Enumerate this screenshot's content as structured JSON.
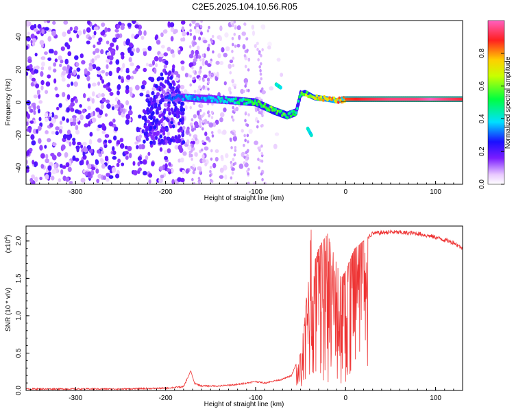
{
  "title": "C2E5.2025.104.10.56.R05",
  "colors": {
    "snr_line": "#ee3333",
    "frame": "#000000",
    "background": "#ffffff"
  },
  "chart_data": [
    {
      "type": "heatmap",
      "title": "C2E5.2025.104.10.56.R05",
      "xlabel": "Height of straight line (km)",
      "ylabel": "Frequency (Hz)",
      "xlim": [
        -355,
        130
      ],
      "ylim": [
        -50,
        50
      ],
      "xticks": [
        -300,
        -200,
        -100,
        0,
        100
      ],
      "yticks": [
        -40,
        -20,
        0,
        20,
        40
      ],
      "colorbar": {
        "label": "Normalized spectral amplitude",
        "range": [
          0.0,
          1.0
        ],
        "ticks": [
          "0.0",
          "0.2",
          "0.4",
          "0.6",
          "0.8"
        ],
        "colormap": [
          "#ffffff",
          "#e8c8ff",
          "#7a1cff",
          "#1a10ff",
          "#00e0ff",
          "#00ff40",
          "#c8ff00",
          "#ffcf00",
          "#ff2020",
          "#ff60c0"
        ]
      },
      "features": {
        "noise_region": {
          "x": [
            -355,
            -180
          ],
          "f": [
            -50,
            50
          ],
          "amplitude": 0.15
        },
        "signal_track": {
          "x": [
            -200,
            -180,
            -150,
            -120,
            -100,
            -80,
            -65,
            -55,
            -50,
            -45,
            -35,
            -20,
            -10,
            0,
            20,
            50,
            80,
            95,
            110,
            130
          ],
          "f": [
            3,
            3,
            2,
            1,
            0,
            -5,
            -8,
            -6,
            5,
            6,
            3,
            2,
            1,
            2,
            2,
            2,
            2,
            2,
            2,
            2
          ],
          "amplitude": [
            0.25,
            0.35,
            0.35,
            0.45,
            0.5,
            0.55,
            0.55,
            0.45,
            0.55,
            0.6,
            0.65,
            0.75,
            0.8,
            0.85,
            0.9,
            0.95,
            0.95,
            1.0,
            0.95,
            0.9
          ]
        },
        "side_tracks": [
          {
            "x": [
              -77,
              -72
            ],
            "f": [
              11,
              9
            ]
          },
          {
            "x": [
              -42,
              -38
            ],
            "f": [
              -16,
              -20
            ]
          }
        ]
      }
    },
    {
      "type": "line",
      "xlabel": "Height of straight line (km)",
      "ylabel": "SNR (10 * v/v)",
      "yscale_label": "(x10",
      "yscale_exp": "4",
      "xlim": [
        -355,
        130
      ],
      "ylim": [
        0,
        2.2
      ],
      "xticks": [
        -300,
        -200,
        -100,
        0,
        100
      ],
      "yticks": [
        "0.0",
        "0.5",
        "1.0",
        "1.5",
        "2.0"
      ],
      "envelope": {
        "x": [
          -355,
          -250,
          -200,
          -180,
          -172,
          -168,
          -160,
          -140,
          -120,
          -100,
          -90,
          -70,
          -60,
          -50,
          -45,
          -40,
          -38,
          -35,
          -30,
          -20,
          -15,
          -10,
          -5,
          0,
          5,
          10,
          20,
          30,
          50,
          80,
          100,
          120,
          130
        ],
        "y": [
          0.02,
          0.02,
          0.03,
          0.05,
          0.26,
          0.1,
          0.06,
          0.06,
          0.08,
          0.12,
          0.1,
          0.15,
          0.2,
          0.5,
          1.0,
          1.8,
          2.2,
          1.7,
          1.9,
          2.1,
          1.9,
          1.7,
          1.5,
          1.6,
          1.75,
          1.9,
          2.0,
          2.1,
          2.12,
          2.1,
          2.05,
          1.98,
          1.9
        ]
      }
    }
  ]
}
